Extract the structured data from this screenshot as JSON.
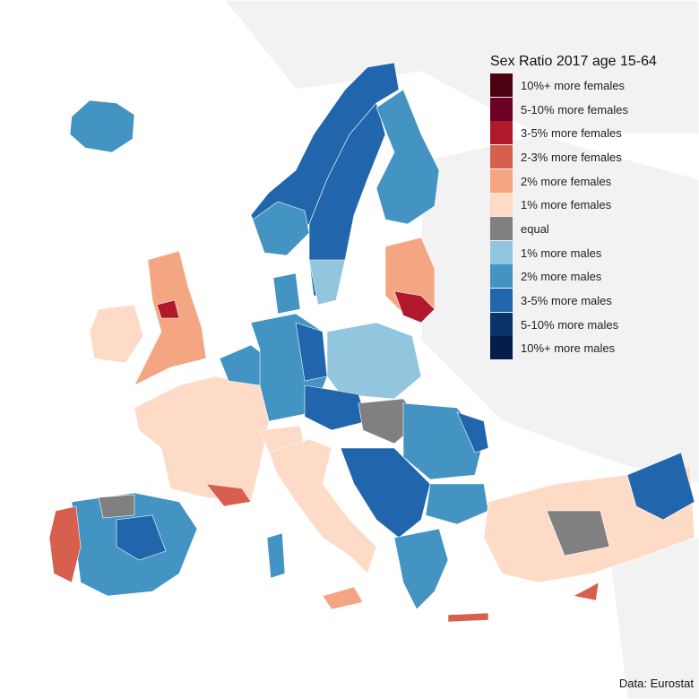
{
  "legend": {
    "title": "Sex Ratio 2017 age 15-64",
    "items": [
      {
        "label": "10%+ more females",
        "color": "#4d0012"
      },
      {
        "label": "5-10% more females",
        "color": "#6b0024"
      },
      {
        "label": "3-5% more females",
        "color": "#b2182b"
      },
      {
        "label": "2-3% more females",
        "color": "#d6604d"
      },
      {
        "label": "2% more females",
        "color": "#f4a582"
      },
      {
        "label": "1% more females",
        "color": "#fddbc7"
      },
      {
        "label": "equal",
        "color": "#808080"
      },
      {
        "label": "1% more males",
        "color": "#92c5de"
      },
      {
        "label": "2% more males",
        "color": "#4393c3"
      },
      {
        "label": "3-5% more males",
        "color": "#2166ac"
      },
      {
        "label": "5-10% more males",
        "color": "#0b3468"
      },
      {
        "label": "10%+ more males",
        "color": "#041d4a"
      }
    ]
  },
  "source": "Data: Eurostat"
}
